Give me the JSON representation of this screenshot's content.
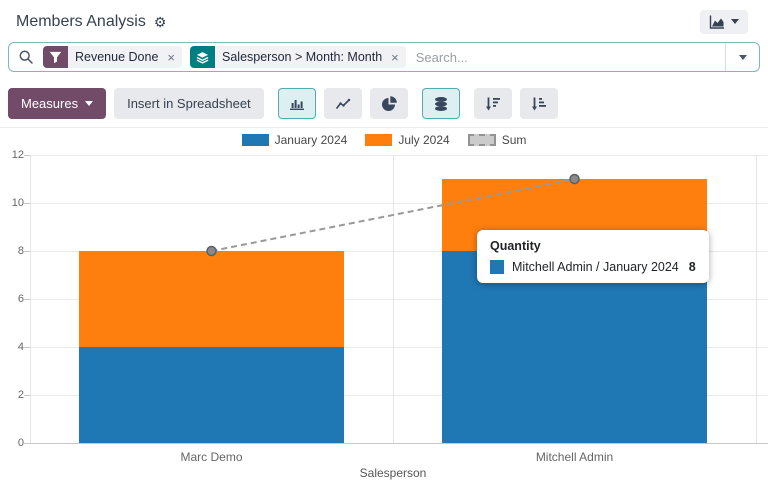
{
  "colors": {
    "primary": "#714B67",
    "groupby_teal": "#017E84",
    "bar_blue": "#1f77b4",
    "bar_orange": "#ff7f0e",
    "sum_line_gray": "#999999",
    "active_button_border": "#56aab1",
    "searchbar_border": "#7fb8ba"
  },
  "header": {
    "title": "Members Analysis"
  },
  "search": {
    "placeholder": "Search...",
    "facets": [
      {
        "label": "Revenue Done",
        "icon": "filter-icon",
        "color": "#714B67",
        "close": "×"
      },
      {
        "label": "Salesperson > Month: Month",
        "icon": "layers-icon",
        "color": "#017E84",
        "close": "×"
      }
    ]
  },
  "toolbar": {
    "measures_label": "Measures",
    "insert_spreadsheet_label": "Insert in Spreadsheet",
    "chart_buttons": [
      {
        "name": "bar-chart",
        "active": true
      },
      {
        "name": "line-chart",
        "active": false
      },
      {
        "name": "pie-chart",
        "active": false
      },
      {
        "name": "stacked",
        "active": true
      },
      {
        "name": "sort-desc",
        "active": false
      },
      {
        "name": "sort-asc",
        "active": false
      }
    ]
  },
  "tooltip": {
    "title": "Quantity",
    "rows": [
      {
        "swatch_color": "#1f77b4",
        "label": "Mitchell Admin / January 2024",
        "value": "8"
      }
    ]
  },
  "chart_data": {
    "type": "bar",
    "stacked": true,
    "title": "",
    "xlabel": "Salesperson",
    "ylabel": "",
    "ylim": [
      0,
      12
    ],
    "yticks": [
      0,
      2,
      4,
      6,
      8,
      10,
      12
    ],
    "grid": true,
    "legend_position": "top",
    "categories": [
      "Marc Demo",
      "Mitchell Admin"
    ],
    "series": [
      {
        "name": "January 2024",
        "type": "bar",
        "color": "#1f77b4",
        "values": [
          4,
          8
        ]
      },
      {
        "name": "July 2024",
        "type": "bar",
        "color": "#ff7f0e",
        "values": [
          4,
          3
        ]
      },
      {
        "name": "Sum",
        "type": "line",
        "dashed": true,
        "color": "#999999",
        "values": [
          8,
          11
        ]
      }
    ]
  }
}
